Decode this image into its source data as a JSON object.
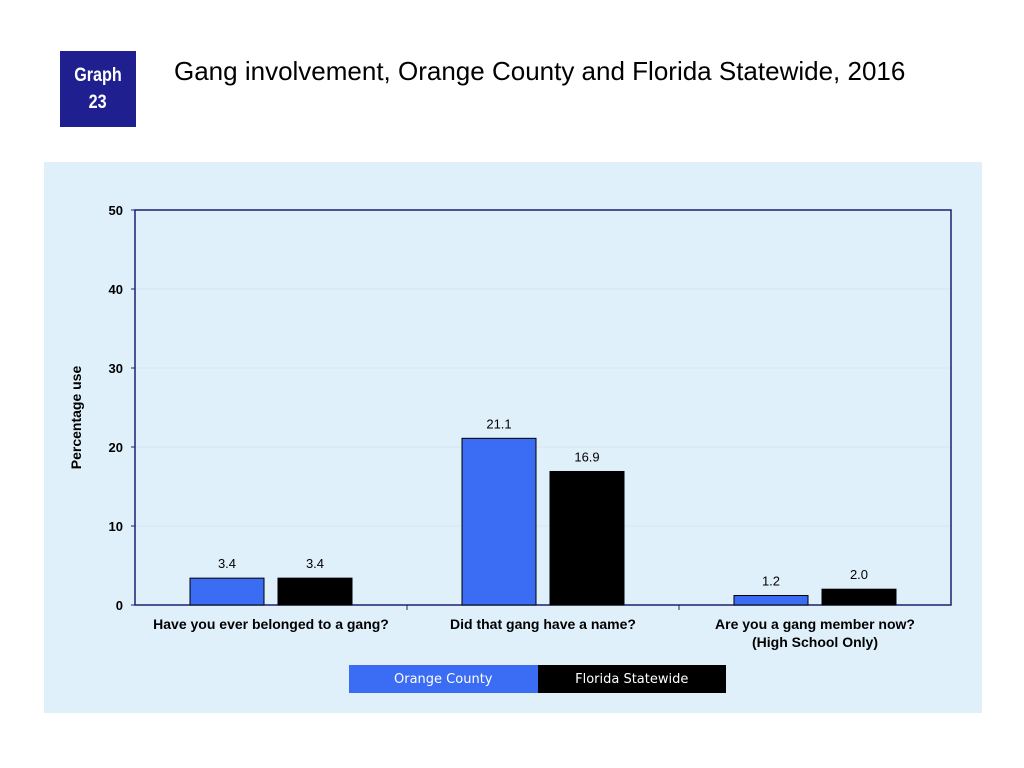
{
  "badge": {
    "line1": "Graph",
    "line2": "23"
  },
  "title": "Gang involvement, Orange County and Florida Statewide, 2016",
  "colors": {
    "orange_county": "#3a6cf4",
    "florida_statewide": "#000000",
    "badge": "#1f1f8f",
    "panel": "#e0f0fb"
  },
  "chart_data": {
    "type": "bar",
    "categories": [
      "Have you ever belonged to a gang?",
      "Did that gang have a name?",
      "Are you a gang member now?\n(High School Only)"
    ],
    "series": [
      {
        "name": "Orange County",
        "values": [
          3.4,
          21.1,
          1.2
        ],
        "labels": [
          "3.4",
          "21.1",
          "1.2"
        ]
      },
      {
        "name": "Florida Statewide",
        "values": [
          3.4,
          16.9,
          2.0
        ],
        "labels": [
          "3.4",
          "16.9",
          "2.0"
        ]
      }
    ],
    "ylabel": "Percentage use",
    "xlabel": "",
    "ylim": [
      0,
      50
    ],
    "yticks": [
      "0",
      "10",
      "20",
      "30",
      "40",
      "50"
    ],
    "grid": true,
    "legend_position": "bottom"
  }
}
